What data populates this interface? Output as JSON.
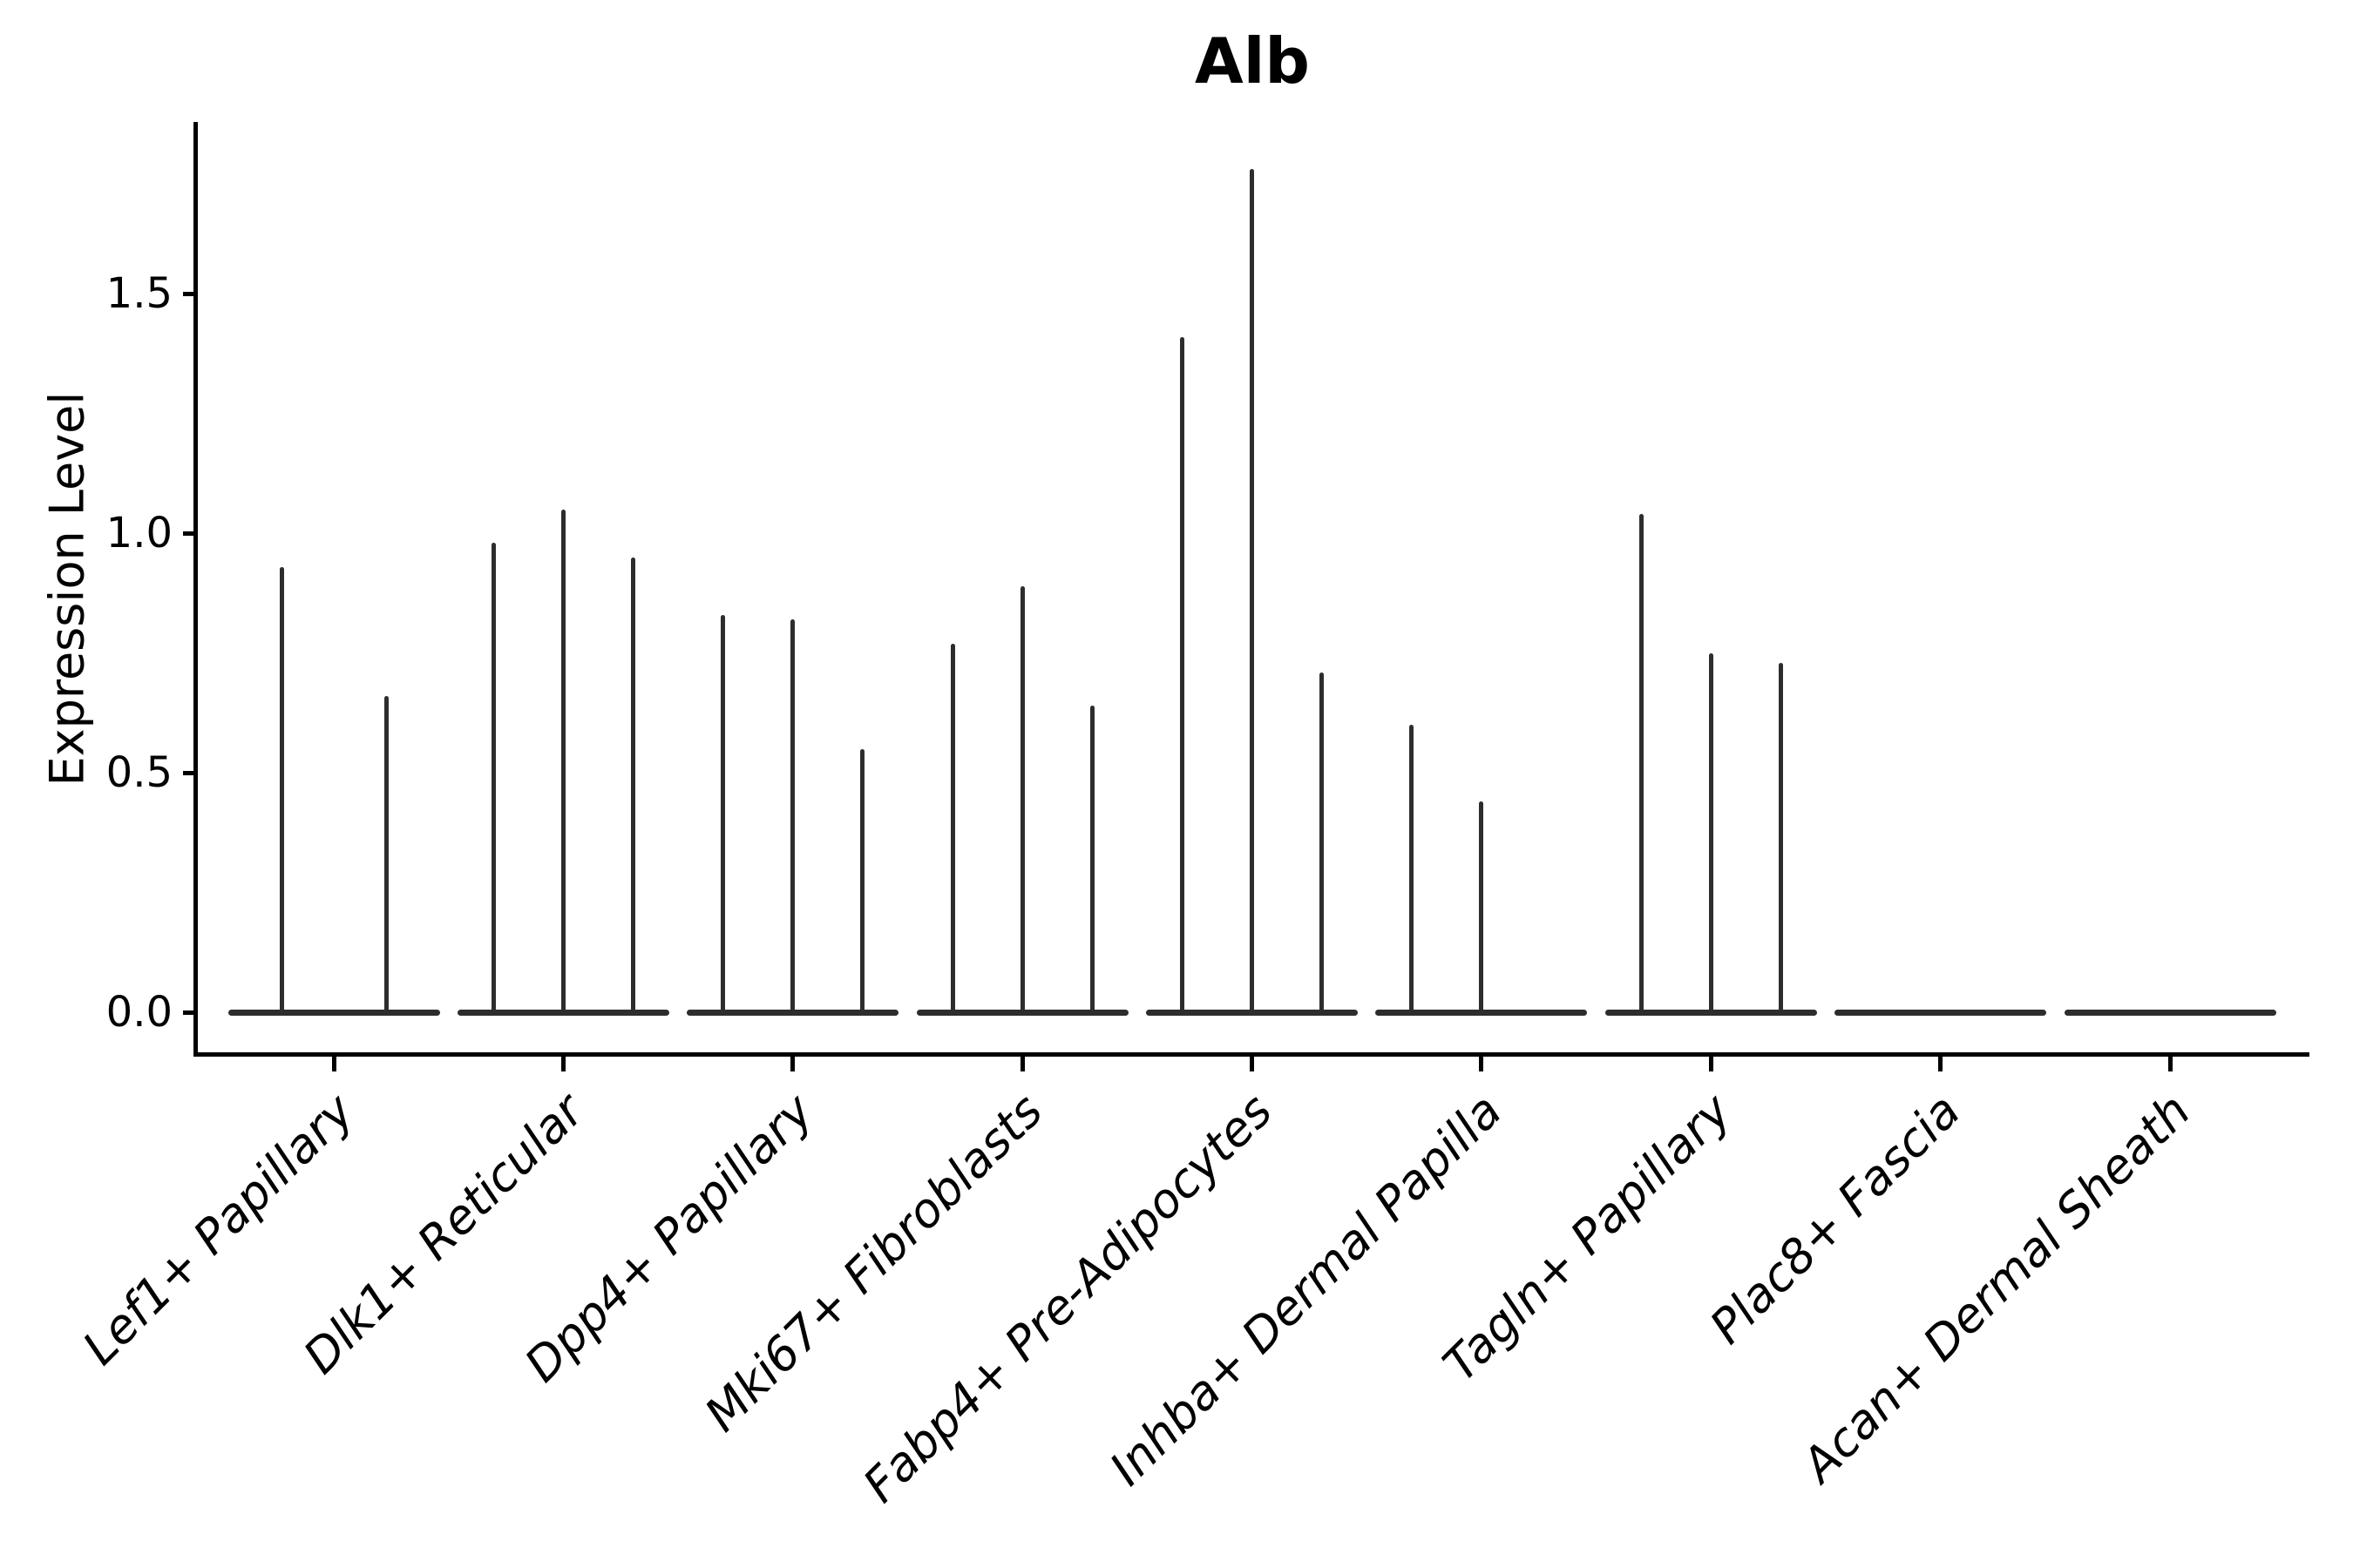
{
  "chart_data": {
    "type": "violin",
    "title": "Alb",
    "ylabel": "Expression Level",
    "xlabel": "",
    "y_ticks": [
      "0.0",
      "0.5",
      "1.0",
      "1.5"
    ],
    "y_tick_values": [
      0.0,
      0.5,
      1.0,
      1.5
    ],
    "ylim": [
      -0.09,
      1.86
    ],
    "grid": "off",
    "legend": "none",
    "categories": [
      "Lef1+ Papillary",
      "Dlk1+ Reticular",
      "Dpp4+ Papillary",
      "Mki67+ Fibroblasts",
      "Fabp4+ Pre-Adipocytes",
      "Inhba+ Dermal Papilla",
      "Tagln+ Papillary",
      "Plac8+ Fascia",
      "Acan+ Dermal Sheath"
    ],
    "baseline_value": 0.0,
    "violins": [
      {
        "category": "Lef1+ Papillary",
        "spikes": [
          {
            "dx": -60,
            "value": 0.93
          },
          {
            "dx": 60,
            "value": 0.66
          }
        ]
      },
      {
        "category": "Dlk1+ Reticular",
        "spikes": [
          {
            "dx": -80,
            "value": 0.98
          },
          {
            "dx": 0,
            "value": 1.05
          },
          {
            "dx": 80,
            "value": 0.95
          }
        ]
      },
      {
        "category": "Dpp4+ Papillary",
        "spikes": [
          {
            "dx": -80,
            "value": 0.83
          },
          {
            "dx": 0,
            "value": 0.82
          },
          {
            "dx": 80,
            "value": 0.55
          }
        ]
      },
      {
        "category": "Mki67+ Fibroblasts",
        "spikes": [
          {
            "dx": -80,
            "value": 0.77
          },
          {
            "dx": 0,
            "value": 0.89
          },
          {
            "dx": 80,
            "value": 0.64
          }
        ]
      },
      {
        "category": "Fabp4+ Pre-Adipocytes",
        "spikes": [
          {
            "dx": -80,
            "value": 1.41
          },
          {
            "dx": 0,
            "value": 1.76
          },
          {
            "dx": 80,
            "value": 0.71
          }
        ]
      },
      {
        "category": "Inhba+ Dermal Papilla",
        "spikes": [
          {
            "dx": -80,
            "value": 0.6
          },
          {
            "dx": 0,
            "value": 0.44
          }
        ]
      },
      {
        "category": "Tagln+ Papillary",
        "spikes": [
          {
            "dx": -80,
            "value": 1.04
          },
          {
            "dx": 0,
            "value": 0.75
          },
          {
            "dx": 80,
            "value": 0.73
          }
        ]
      },
      {
        "category": "Plac8+ Fascia",
        "spikes": []
      },
      {
        "category": "Acan+ Dermal Sheath",
        "spikes": []
      }
    ],
    "colors": {
      "violin_stroke": "#2d2d2d",
      "axis": "#000000",
      "text": "#000000",
      "background": "#ffffff"
    }
  }
}
